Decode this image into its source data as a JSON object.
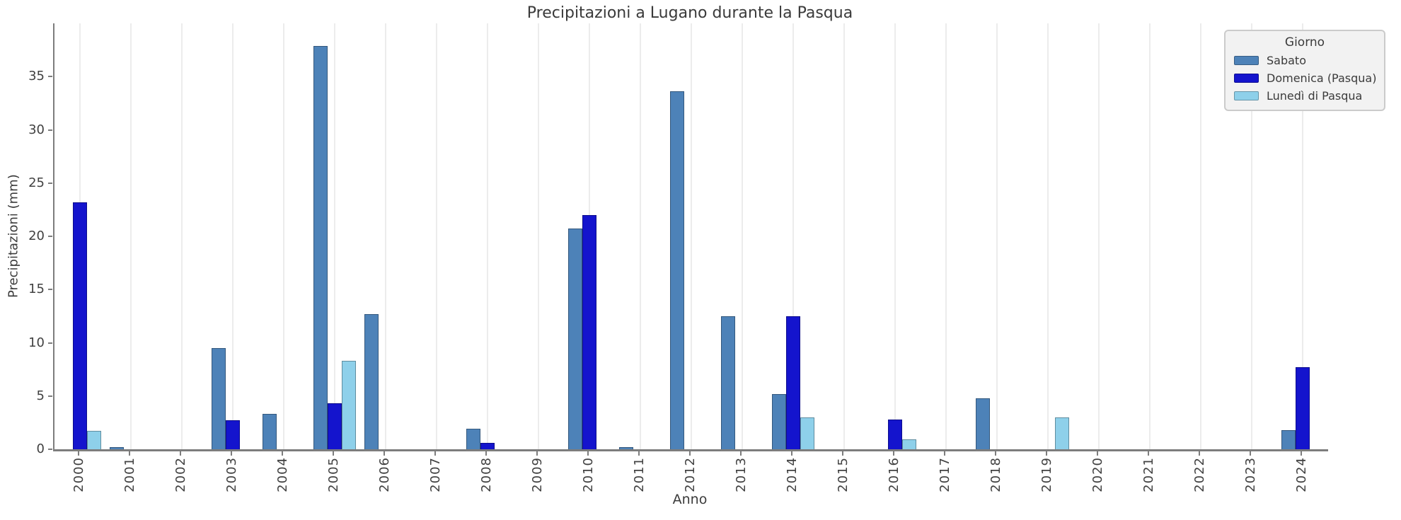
{
  "chart_data": {
    "type": "bar",
    "title": "Precipitazioni a Lugano durante la Pasqua",
    "xlabel": "Anno",
    "ylabel": "Precipitazioni (mm)",
    "ylim": [
      0,
      40
    ],
    "yticks": [
      0,
      5,
      10,
      15,
      20,
      25,
      30,
      35
    ],
    "grid": "vertical-only",
    "legend_title": "Giorno",
    "legend_position": "upper right",
    "categories": [
      "2000",
      "2001",
      "2002",
      "2003",
      "2004",
      "2005",
      "2006",
      "2007",
      "2008",
      "2009",
      "2010",
      "2011",
      "2012",
      "2013",
      "2014",
      "2015",
      "2016",
      "2017",
      "2018",
      "2019",
      "2020",
      "2021",
      "2022",
      "2023",
      "2024"
    ],
    "series": [
      {
        "name": "Sabato",
        "color": "#4d82b8",
        "values": [
          0,
          0.2,
          0,
          9.5,
          3.3,
          37.9,
          12.7,
          0,
          1.9,
          0,
          20.7,
          0.2,
          33.6,
          12.5,
          5.2,
          0,
          0,
          0,
          4.8,
          0,
          0,
          0,
          0,
          0,
          1.8
        ]
      },
      {
        "name": "Domenica (Pasqua)",
        "color": "#1414cd",
        "values": [
          23.2,
          0,
          0,
          2.7,
          0,
          4.3,
          0,
          0,
          0.6,
          0,
          22.0,
          0,
          0,
          0,
          12.5,
          0,
          2.8,
          0,
          0,
          0,
          0,
          0,
          0,
          0,
          7.7
        ]
      },
      {
        "name": "Lunedì di Pasqua",
        "color": "#8ed0ea",
        "values": [
          1.7,
          0,
          0,
          0,
          0,
          8.3,
          0,
          0,
          0,
          0,
          0,
          0,
          0,
          0,
          3.0,
          0,
          0.9,
          0,
          0,
          3.0,
          0,
          0,
          0,
          0,
          0
        ]
      }
    ]
  }
}
